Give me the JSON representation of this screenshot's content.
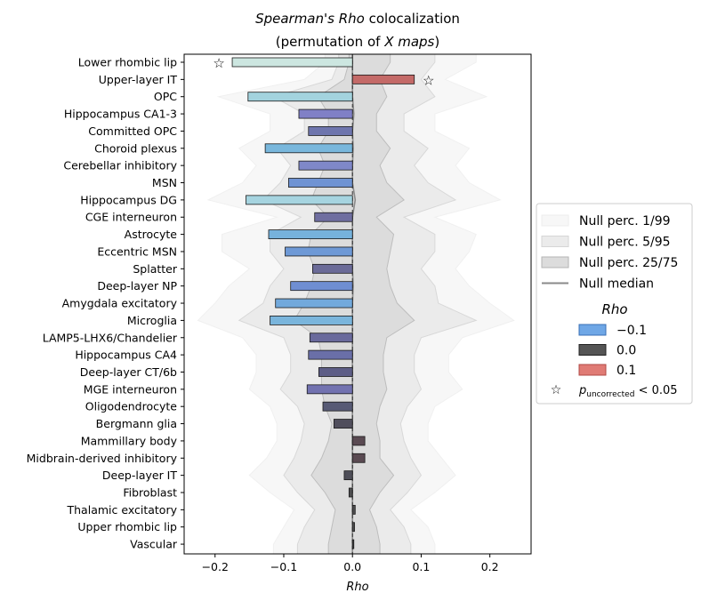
{
  "chart_data": {
    "type": "bar",
    "orientation": "horizontal",
    "title_line1_italic": "Spearman's Rho",
    "title_line1_rest": " colocalization",
    "title_line2_pre": "(permutation of ",
    "title_line2_italic": "X maps",
    "title_line2_post": ")",
    "xlabel": "Rho",
    "xlim": [
      -0.245,
      0.26
    ],
    "xticks": [
      -0.2,
      -0.1,
      0.0,
      0.1,
      0.2
    ],
    "xtick_labels": [
      "−0.2",
      "−0.1",
      "0.0",
      "0.1",
      "0.2"
    ],
    "categories": [
      "Lower rhombic lip",
      "Upper-layer IT",
      "OPC",
      "Hippocampus CA1-3",
      "Committed OPC",
      "Choroid plexus",
      "Cerebellar inhibitory",
      "MSN",
      "Hippocampus DG",
      "CGE interneuron",
      "Astrocyte",
      "Eccentric MSN",
      "Splatter",
      "Deep-layer NP",
      "Amygdala excitatory",
      "Microglia",
      "LAMP5-LHX6/Chandelier",
      "Hippocampus CA4",
      "Deep-layer CT/6b",
      "MGE interneuron",
      "Oligodendrocyte",
      "Bergmann glia",
      "Mammillary body",
      "Midbrain-derived inhibitory",
      "Deep-layer IT",
      "Fibroblast",
      "Thalamic excitatory",
      "Upper rhombic lip",
      "Vascular"
    ],
    "values": [
      -0.175,
      0.09,
      -0.152,
      -0.078,
      -0.064,
      -0.127,
      -0.078,
      -0.093,
      -0.155,
      -0.055,
      -0.122,
      -0.098,
      -0.058,
      -0.09,
      -0.112,
      -0.12,
      -0.062,
      -0.064,
      -0.049,
      -0.066,
      -0.043,
      -0.027,
      0.018,
      0.018,
      -0.012,
      -0.005,
      0.004,
      0.003,
      0.002
    ],
    "bar_colors": [
      "#cce6e0",
      "#c46a68",
      "#a3d3de",
      "#8080c6",
      "#6e75ad",
      "#79b7dc",
      "#7f88c9",
      "#6f93d3",
      "#a6d4e0",
      "#6f6ea0",
      "#76b2dc",
      "#6e99d6",
      "#6b6b98",
      "#6f8ed2",
      "#72a9dc",
      "#7ab5dc",
      "#6a6a9c",
      "#6a6fa8",
      "#5d5d86",
      "#7272b0",
      "#575a75",
      "#504e5c",
      "#5a4a52",
      "#5a4a52",
      "#4e4e58",
      "#4d4d4f",
      "#4e4d4f",
      "#4d4d4f",
      "#4c4c4e"
    ],
    "significant": [
      true,
      true,
      false,
      false,
      false,
      false,
      false,
      false,
      false,
      false,
      false,
      false,
      false,
      false,
      false,
      false,
      false,
      false,
      false,
      false,
      false,
      false,
      false,
      false,
      false,
      false,
      false,
      false,
      false
    ],
    "null_median": [
      0.0,
      0.0,
      0.0,
      0.002,
      0.0,
      0.001,
      0.0,
      0.0,
      0.004,
      0.0,
      0.0,
      0.0,
      0.0,
      0.001,
      0.0,
      0.0,
      0.0,
      0.0,
      0.0,
      0.0,
      0.0,
      0.0,
      0.0,
      0.0,
      0.0,
      0.0,
      0.0,
      0.0,
      0.0
    ],
    "null_25_75": {
      "low": [
        -0.005,
        -0.012,
        -0.05,
        -0.035,
        -0.035,
        -0.05,
        -0.04,
        -0.05,
        -0.06,
        -0.035,
        -0.06,
        -0.065,
        -0.055,
        -0.06,
        -0.07,
        -0.085,
        -0.05,
        -0.045,
        -0.045,
        -0.045,
        -0.04,
        -0.03,
        -0.035,
        -0.045,
        -0.06,
        -0.04,
        -0.025,
        -0.03,
        -0.035
      ],
      "high": [
        0.055,
        0.04,
        0.05,
        0.035,
        0.035,
        0.055,
        0.04,
        0.05,
        0.075,
        0.035,
        0.06,
        0.055,
        0.05,
        0.055,
        0.065,
        0.09,
        0.05,
        0.045,
        0.045,
        0.05,
        0.04,
        0.035,
        0.04,
        0.04,
        0.06,
        0.04,
        0.025,
        0.035,
        0.04
      ]
    },
    "null_5_95": {
      "low": [
        -0.02,
        -0.03,
        -0.115,
        -0.07,
        -0.07,
        -0.11,
        -0.09,
        -0.105,
        -0.13,
        -0.075,
        -0.12,
        -0.12,
        -0.1,
        -0.12,
        -0.13,
        -0.165,
        -0.1,
        -0.09,
        -0.09,
        -0.105,
        -0.08,
        -0.07,
        -0.075,
        -0.085,
        -0.1,
        -0.08,
        -0.055,
        -0.07,
        -0.08
      ],
      "high": [
        0.12,
        0.1,
        0.12,
        0.075,
        0.075,
        0.11,
        0.09,
        0.11,
        0.15,
        0.075,
        0.12,
        0.12,
        0.1,
        0.12,
        0.125,
        0.18,
        0.1,
        0.09,
        0.09,
        0.1,
        0.08,
        0.07,
        0.075,
        0.085,
        0.1,
        0.08,
        0.055,
        0.075,
        0.085
      ]
    },
    "null_1_99": {
      "low": [
        -0.04,
        -0.07,
        -0.195,
        -0.12,
        -0.12,
        -0.165,
        -0.14,
        -0.16,
        -0.21,
        -0.11,
        -0.19,
        -0.19,
        -0.15,
        -0.18,
        -0.2,
        -0.225,
        -0.16,
        -0.14,
        -0.14,
        -0.15,
        -0.12,
        -0.11,
        -0.11,
        -0.125,
        -0.15,
        -0.12,
        -0.085,
        -0.1,
        -0.115
      ],
      "high": [
        0.18,
        0.135,
        0.195,
        0.12,
        0.12,
        0.17,
        0.15,
        0.17,
        0.215,
        0.12,
        0.18,
        0.17,
        0.15,
        0.17,
        0.2,
        0.235,
        0.16,
        0.14,
        0.14,
        0.16,
        0.12,
        0.11,
        0.11,
        0.13,
        0.15,
        0.12,
        0.085,
        0.11,
        0.12
      ]
    },
    "legend": {
      "placement": "right",
      "null_items": [
        "Null perc. 1/99",
        "Null perc. 5/95",
        "Null perc. 25/75",
        "Null median"
      ],
      "rho_title": "Rho",
      "rho_items": [
        {
          "label": "−0.1",
          "color": "#6fa7e6",
          "edge": "#3a6fb5"
        },
        {
          "label": "0.0",
          "color": "#555555",
          "edge": "#222222"
        },
        {
          "label": "0.1",
          "color": "#e07b75",
          "edge": "#b04a45"
        }
      ],
      "sig_label_italic": "p",
      "sig_label_sub": "uncorrected",
      "sig_label_rest": " < 0.05"
    },
    "grid": false,
    "colors": {
      "null_1_99": "#f7f7f7",
      "null_5_95": "#ebebeb",
      "null_25_75": "#dcdcdc",
      "null_median": "#8a8a8a"
    }
  }
}
